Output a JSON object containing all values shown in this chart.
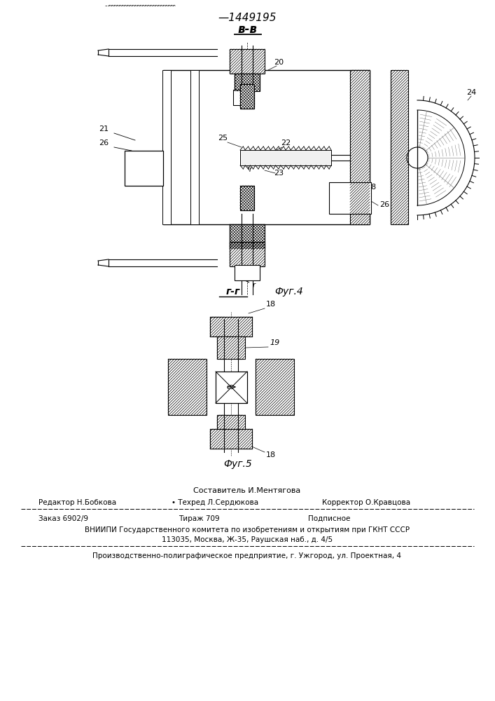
{
  "patent_number": "1449195",
  "bb_label": "в-в",
  "gg_label": "г-г",
  "fig4_label": "Фуг.4",
  "fig5_label": "Фуг.5",
  "footer_composer": "Составитель И.Ментягова",
  "footer_editor": "Редактор Н.Бобкова",
  "footer_techred": "• Техред Л.Сердюкова",
  "footer_corrector": "Корректор О.Кравцова",
  "footer_order": "Заказ 6902/9",
  "footer_print": "Тираж 709",
  "footer_signed": "Подписное",
  "footer_org1": "ВНИИПИ Государственного комитета по изобретениям и открытиям при ГКНТ СССР",
  "footer_org2": "113035, Москва, Ж-35, Раушская наб., д. 4/5",
  "footer_printer": "Производственно-полиграфическое предприятие, г. Ужгород, ул. Проектная, 4",
  "bg_color": "#ffffff",
  "text_color": "#000000",
  "line_color": "#000000"
}
